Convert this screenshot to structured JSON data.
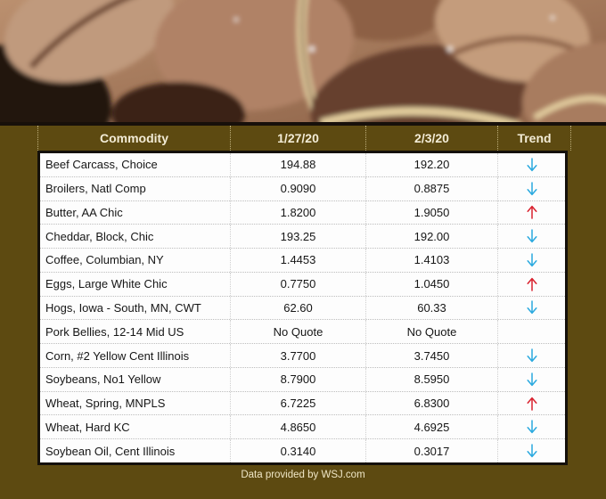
{
  "colors": {
    "background": "#5d4a11",
    "header_text": "#f3ecd6",
    "trend_up": "#d9222f",
    "trend_down": "#2aa9df"
  },
  "photo": {
    "description": "coffee-beans"
  },
  "chart_data": {
    "type": "table",
    "columns": [
      "Commodity",
      "1/27/20",
      "2/3/20",
      "Trend"
    ],
    "rows": [
      {
        "commodity": "Beef Carcass, Choice",
        "price_jan27": "194.88",
        "price_feb3": "192.20",
        "trend": "down"
      },
      {
        "commodity": "Broilers, Natl Comp",
        "price_jan27": "0.9090",
        "price_feb3": "0.8875",
        "trend": "down"
      },
      {
        "commodity": "Butter, AA Chic",
        "price_jan27": "1.8200",
        "price_feb3": "1.9050",
        "trend": "up"
      },
      {
        "commodity": "Cheddar, Block, Chic",
        "price_jan27": "193.25",
        "price_feb3": "192.00",
        "trend": "down"
      },
      {
        "commodity": "Coffee, Columbian, NY",
        "price_jan27": "1.4453",
        "price_feb3": "1.4103",
        "trend": "down"
      },
      {
        "commodity": "Eggs, Large White Chic",
        "price_jan27": "0.7750",
        "price_feb3": "1.0450",
        "trend": "up"
      },
      {
        "commodity": "Hogs, Iowa - South, MN, CWT",
        "price_jan27": "62.60",
        "price_feb3": "60.33",
        "trend": "down"
      },
      {
        "commodity": "Pork Bellies, 12-14 Mid US",
        "price_jan27": "No Quote",
        "price_feb3": "No Quote",
        "trend": "none"
      },
      {
        "commodity": "Corn, #2 Yellow Cent Illinois",
        "price_jan27": "3.7700",
        "price_feb3": "3.7450",
        "trend": "down"
      },
      {
        "commodity": "Soybeans, No1 Yellow",
        "price_jan27": "8.7900",
        "price_feb3": "8.5950",
        "trend": "down"
      },
      {
        "commodity": "Wheat, Spring, MNPLS",
        "price_jan27": "6.7225",
        "price_feb3": "6.8300",
        "trend": "up"
      },
      {
        "commodity": "Wheat, Hard KC",
        "price_jan27": "4.8650",
        "price_feb3": "4.6925",
        "trend": "down"
      },
      {
        "commodity": "Soybean Oil, Cent Illinois",
        "price_jan27": "0.3140",
        "price_feb3": "0.3017",
        "trend": "down"
      }
    ]
  },
  "footer": {
    "credit": "Data provided by WSJ.com"
  }
}
